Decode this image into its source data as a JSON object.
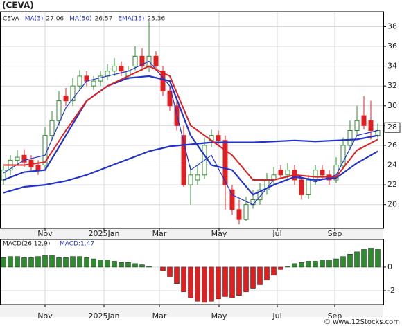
{
  "title": "(CEVA)",
  "footer": "© www.12Stocks.com",
  "chart_data": [
    {
      "type": "candlestick",
      "ticker": "CEVA",
      "x": [
        0,
        1,
        2,
        3,
        4,
        5,
        6,
        7,
        8,
        9,
        10,
        11,
        12,
        13,
        14,
        15,
        16,
        17,
        18,
        19,
        20,
        21,
        22,
        23,
        24,
        25,
        26,
        27,
        28,
        29,
        30,
        31,
        32,
        33,
        34,
        35,
        36,
        37,
        38,
        39,
        40,
        41,
        42,
        43,
        44,
        45,
        46,
        47,
        48,
        49,
        50,
        51,
        52,
        53,
        54
      ],
      "open": [
        22.5,
        23.5,
        24.5,
        25,
        24.5,
        24,
        24,
        27,
        28.5,
        31,
        30.5,
        32,
        33,
        32,
        32.5,
        33,
        33.5,
        34,
        33,
        34,
        35,
        34,
        35,
        33.5,
        31.5,
        30,
        27,
        22,
        22.5,
        23,
        26.5,
        27,
        26.5,
        21.5,
        19.5,
        18.5,
        20,
        20.5,
        21.5,
        22.5,
        23.5,
        23,
        23.5,
        22.5,
        21,
        22.5,
        23.5,
        23,
        22.5,
        24,
        26,
        27.5,
        29,
        28.5,
        27
      ],
      "high": [
        23.9,
        25,
        25.5,
        25.6,
        25,
        24.5,
        27.8,
        29.5,
        31.5,
        31.8,
        32.8,
        33.6,
        33.5,
        33,
        33.5,
        34.2,
        34.8,
        34.5,
        34,
        36,
        35.8,
        38.5,
        35.5,
        34,
        32,
        30.5,
        28,
        24,
        24,
        26.8,
        27.6,
        27.5,
        27,
        22,
        20.5,
        20.8,
        21.5,
        22.2,
        23.2,
        23.8,
        24,
        24.2,
        24,
        23,
        23,
        24,
        24,
        23.5,
        24.8,
        26.8,
        28.5,
        30,
        31,
        30.5,
        28.2
      ],
      "low": [
        22,
        23,
        24,
        23.8,
        23.3,
        23,
        23.5,
        26.5,
        28,
        30,
        30,
        31.5,
        32,
        31.6,
        32,
        32.6,
        33,
        33,
        32.6,
        33.6,
        33.5,
        33.4,
        33.5,
        31,
        29.5,
        27.5,
        21.8,
        20,
        22,
        22.6,
        25.8,
        26,
        19.5,
        19,
        18,
        18.3,
        19.6,
        20,
        21,
        22,
        22.6,
        22.5,
        22,
        20.5,
        20.6,
        22,
        22.6,
        22,
        22.2,
        23.6,
        25.6,
        27,
        27.6,
        26.6,
        26.8
      ],
      "close": [
        23.5,
        24.5,
        24.8,
        24.3,
        23.8,
        23.5,
        27,
        28.5,
        30.5,
        30.5,
        32,
        33,
        32.5,
        32.5,
        33,
        33.5,
        34,
        33.5,
        33.5,
        35,
        34,
        35,
        34,
        31.5,
        30,
        28,
        22,
        23,
        23,
        26,
        27,
        26.5,
        22,
        19.5,
        18.5,
        20,
        20.5,
        21.5,
        22.5,
        23,
        23,
        23.5,
        22.5,
        21,
        22.5,
        23.5,
        23,
        22.5,
        24,
        26,
        27.5,
        28.5,
        28,
        27.5,
        27.5
      ],
      "up_color": "#2e8b2e",
      "down_color": "#e02020",
      "line_x": [
        0,
        3,
        6,
        9,
        12,
        15,
        18,
        21,
        24,
        27,
        30,
        33,
        36,
        39,
        42,
        45,
        48,
        51,
        54
      ],
      "lines": [
        {
          "name": "MA(3)",
          "legend_value": 27.06,
          "color": "#2233cc",
          "width": 1.2,
          "values": [
            23.2,
            24.5,
            25,
            29.8,
            32.5,
            33,
            33.5,
            34.5,
            32,
            23.5,
            25,
            21,
            20,
            22.5,
            23,
            22.3,
            23,
            27,
            27.5
          ]
        },
        {
          "name": "MA(50)",
          "legend_value": 26.57,
          "color": "#2233cc",
          "width": 2.2,
          "values": [
            21.2,
            21.8,
            22,
            22.4,
            23,
            23.8,
            24.6,
            25.4,
            25.9,
            26.1,
            26.3,
            26.3,
            26.3,
            26.4,
            26.5,
            26.4,
            26.5,
            26.6,
            27
          ]
        },
        {
          "name": "EMA(13)",
          "legend_value": 25.36,
          "color": "#2233cc",
          "width": 2.2,
          "values": [
            22.5,
            23.3,
            23.5,
            27,
            30.5,
            32,
            32.8,
            33,
            32.5,
            27,
            24,
            23.5,
            21,
            22,
            22.8,
            22.5,
            22.7,
            24.2,
            25.4
          ]
        },
        {
          "color": "#e02020",
          "width": 2,
          "values": [
            24,
            24,
            24.3,
            27.5,
            30.5,
            32,
            33,
            34,
            33,
            28,
            26.5,
            25,
            22.5,
            22.5,
            23,
            22.8,
            22.8,
            25.5,
            26.6
          ]
        }
      ],
      "current": {
        "value": 27.8,
        "label": "28"
      },
      "xlim": [
        -0.5,
        54.8
      ],
      "xticks": [
        {
          "value": 6,
          "label": "Nov"
        },
        {
          "value": 14.5,
          "label": "2025Jan"
        },
        {
          "value": 22.5,
          "label": "Mar"
        },
        {
          "value": 31.1,
          "label": "May"
        },
        {
          "value": 39.5,
          "label": "Jul"
        },
        {
          "value": 47.8,
          "label": "Sep"
        }
      ],
      "ylim": [
        17.6,
        39.5
      ],
      "yticks": [
        20,
        22,
        24,
        26,
        28,
        30,
        32,
        34,
        36,
        38
      ],
      "grid": true
    },
    {
      "type": "bar",
      "title": "MACD(26,12,9)",
      "subtitle": "MACD:1.47",
      "x": [
        0,
        1,
        2,
        3,
        4,
        5,
        6,
        7,
        8,
        9,
        10,
        11,
        12,
        13,
        14,
        15,
        16,
        17,
        18,
        19,
        20,
        21,
        22,
        23,
        24,
        25,
        26,
        27,
        28,
        29,
        30,
        31,
        32,
        33,
        34,
        35,
        36,
        37,
        38,
        39,
        40,
        41,
        42,
        43,
        44,
        45,
        46,
        47,
        48,
        49,
        50,
        51,
        52,
        53,
        54
      ],
      "values": [
        0.8,
        0.9,
        0.9,
        0.8,
        0.8,
        0.9,
        1.0,
        1.0,
        0.8,
        0.8,
        0.9,
        0.9,
        0.8,
        0.7,
        0.6,
        0.6,
        0.5,
        0.4,
        0.4,
        0.3,
        0.2,
        0.1,
        0.0,
        -0.3,
        -0.8,
        -1.4,
        -2.1,
        -2.6,
        -2.9,
        -3.0,
        -2.9,
        -2.7,
        -2.5,
        -2.6,
        -2.4,
        -2.1,
        -1.8,
        -1.5,
        -1.1,
        -0.7,
        -0.2,
        0.1,
        0.3,
        0.4,
        0.5,
        0.5,
        0.6,
        0.6,
        0.7,
        0.9,
        1.1,
        1.3,
        1.5,
        1.6,
        1.5
      ],
      "pos_color": "#2e8b2e",
      "neg_color": "#e02020",
      "xlim": [
        -0.5,
        54.8
      ],
      "xticks": [
        {
          "value": 6,
          "label": "Nov"
        },
        {
          "value": 14.5,
          "label": "2025Jan"
        },
        {
          "value": 22.5,
          "label": "Mar"
        },
        {
          "value": 31.1,
          "label": "May"
        },
        {
          "value": 39.5,
          "label": "Jul"
        },
        {
          "value": 47.8,
          "label": "Sep"
        }
      ],
      "ylim": [
        -3.18,
        2.35
      ],
      "yticks": [
        -2,
        0
      ],
      "grid": true
    }
  ]
}
